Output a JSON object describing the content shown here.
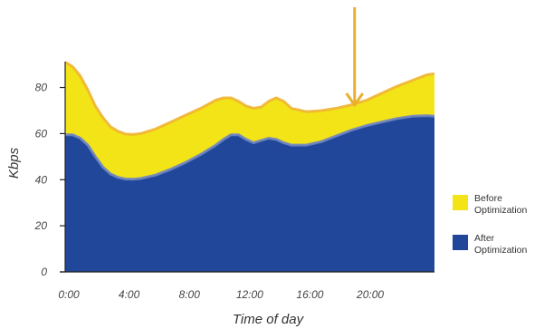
{
  "chart_data": {
    "type": "area",
    "xlabel": "Time of day",
    "ylabel": "Kbps",
    "x_ticks": [
      "0:00",
      "4:00",
      "8:00",
      "12:00",
      "16:00",
      "20:00"
    ],
    "y_ticks": [
      "0",
      "20",
      "40",
      "60",
      "80"
    ],
    "xlim": [
      0,
      24.5
    ],
    "ylim": [
      0,
      92
    ],
    "legend_position": "right",
    "annotation": {
      "type": "arrow",
      "x": 19.2
    },
    "series": [
      {
        "name": "Before Optimization",
        "color": "#F2E417",
        "outline": "#F0B432",
        "x": [
          0,
          0.5,
          1,
          1.5,
          2,
          2.5,
          3,
          3.5,
          4,
          4.5,
          5,
          6,
          7,
          8,
          9,
          10,
          10.5,
          11,
          11.5,
          12,
          12.5,
          13,
          13.5,
          14,
          14.5,
          15,
          16,
          17,
          18,
          19,
          20,
          21,
          22,
          23,
          24,
          24.5
        ],
        "values": [
          91,
          89,
          85,
          79,
          72,
          67,
          63,
          61,
          59.8,
          59.6,
          60,
          62,
          65,
          68,
          71,
          74.5,
          75.5,
          75.5,
          74,
          72,
          71,
          71.5,
          74,
          75.5,
          74,
          71,
          69.5,
          70,
          71,
          72.5,
          74.5,
          77.5,
          80.5,
          83,
          85.5,
          86
        ]
      },
      {
        "name": "After Optimization",
        "color": "#21479A",
        "outline": "#6E84C4",
        "x": [
          0,
          0.5,
          1,
          1.5,
          2,
          2.5,
          3,
          3.5,
          4,
          4.5,
          5,
          6,
          7,
          8,
          9,
          10,
          10.5,
          11,
          11.5,
          12,
          12.5,
          13,
          13.5,
          14,
          14.5,
          15,
          16,
          17,
          18,
          19,
          20,
          21,
          22,
          23,
          24,
          24.5
        ],
        "values": [
          59.5,
          59.5,
          58,
          55,
          50,
          45.5,
          42.5,
          41,
          40.3,
          40.2,
          40.5,
          42,
          44.5,
          47.5,
          51,
          55,
          57.5,
          59.5,
          59.5,
          57.5,
          56,
          57,
          58,
          57.5,
          56,
          55,
          55,
          56.5,
          59,
          61.5,
          63.5,
          65,
          66.5,
          67.5,
          67.8,
          67.5
        ]
      }
    ]
  }
}
